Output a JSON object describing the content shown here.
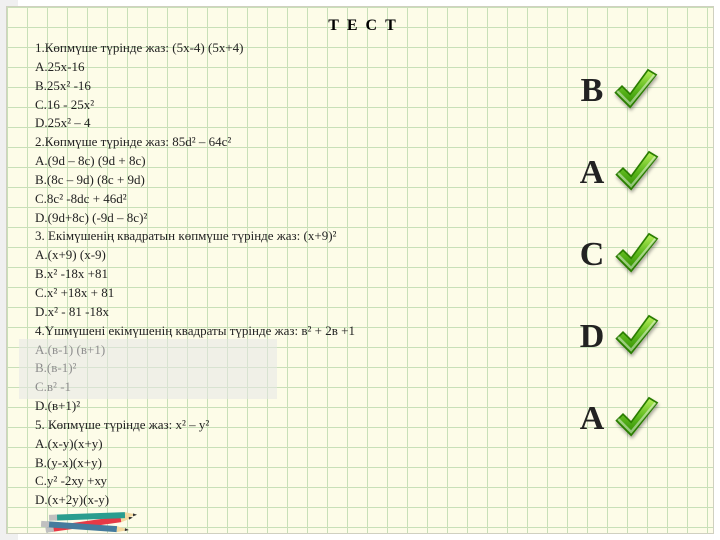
{
  "title": "Т Е С Т",
  "lines": [
    "1.Көпмүше түрінде жаз: (5х-4) (5х+4)",
    "А.25х-16",
    "В.25х² -16",
    "С.16 - 25х²",
    "D.25х² – 4",
    "2.Көпмүше түрінде жаз: 85d² – 64с²",
    "А.(9d – 8с) (9d + 8с)",
    "В.(8с – 9d) (8с + 9d)",
    "С.8с² -8dс + 46d²",
    "D.(9d+8с) (-9d – 8с)²",
    "3. Екімүшенің квадратын көпмүше түрінде жаз: (х+9)²",
    "А.(х+9) (х-9)",
    "В.х² -18х +81",
    "С.х² +18х + 81",
    "D.х² - 81 -18х",
    "4.Үшмүшені екімүшенің квадраты түрінде жаз: в² + 2в +1",
    "А.(в-1) (в+1)",
    "В.(в-1)²",
    "С.в² -1",
    "D.(в+1)²",
    "5. Көпмүше түрінде жаз: х² – у²",
    "А.(х-у)(х+у)",
    "В.(у-х)(х+у)",
    "С.у² -2ху +ху",
    "D.(х+2у)(х-у)"
  ],
  "answers": [
    "B",
    "A",
    "C",
    "D",
    "A"
  ],
  "colors": {
    "paper_bg": "#fdfce8",
    "grid": "#c8e0b8",
    "text": "#222222",
    "check_dark": "#2e8b00",
    "check_light": "#8fdc3a",
    "overlay": "#e6e6e6"
  },
  "check_icon": {
    "gradient_stops": [
      "#b8f05a",
      "#5fba1f",
      "#2e8b00"
    ],
    "stroke": "#2a7d00"
  }
}
